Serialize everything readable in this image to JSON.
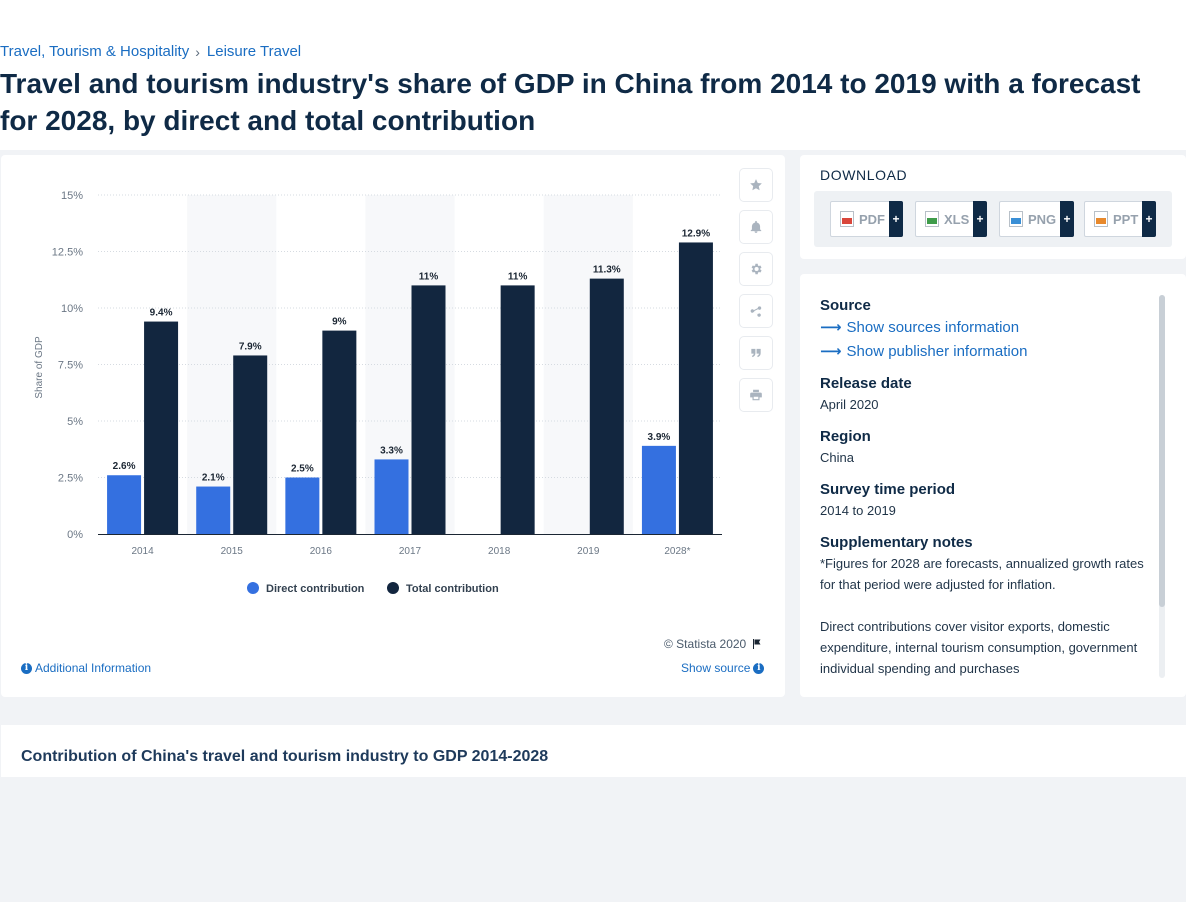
{
  "breadcrumb": {
    "items": [
      "Travel, Tourism & Hospitality",
      "Leisure Travel"
    ],
    "separator": "›"
  },
  "title": "Travel and tourism industry's share of GDP in China from 2014 to 2019 with a forecast for 2028, by direct and total contribution",
  "chart_data": {
    "type": "bar",
    "categories": [
      "2014",
      "2015",
      "2016",
      "2017",
      "2018",
      "2019",
      "2028*"
    ],
    "series": [
      {
        "name": "Direct contribution",
        "color": "#3470e0",
        "values": [
          2.6,
          2.1,
          2.5,
          3.3,
          null,
          null,
          3.9
        ],
        "labels": [
          "2.6%",
          "2.1%",
          "2.5%",
          "3.3%",
          "",
          "",
          "3.9%"
        ]
      },
      {
        "name": "Total contribution",
        "color": "#12263f",
        "values": [
          9.4,
          7.9,
          9.0,
          11.0,
          11.0,
          11.3,
          12.9
        ],
        "labels": [
          "9.4%",
          "7.9%",
          "9%",
          "11%",
          "11%",
          "11.3%",
          "12.9%"
        ]
      }
    ],
    "ylabel": "Share of GDP",
    "xlabel": "",
    "ylim": [
      0,
      15
    ],
    "yticks": [
      0,
      2.5,
      5,
      7.5,
      10,
      12.5,
      15
    ],
    "ytick_labels": [
      "0%",
      "2.5%",
      "5%",
      "7.5%",
      "10%",
      "12.5%",
      "15%"
    ],
    "grid": true,
    "legend_position": "bottom"
  },
  "chart_footer": {
    "credit": "© Statista 2020",
    "additional_info": "Additional Information",
    "show_source": "Show source"
  },
  "tools": [
    "star-icon",
    "bell-icon",
    "gear-icon",
    "share-icon",
    "quote-icon",
    "print-icon"
  ],
  "download": {
    "title": "DOWNLOAD",
    "buttons": [
      {
        "label": "PDF",
        "color": "#d9463b"
      },
      {
        "label": "XLS",
        "color": "#3f9c4a"
      },
      {
        "label": "PNG",
        "color": "#3a8fd6"
      },
      {
        "label": "PPT",
        "color": "#e8892c"
      }
    ],
    "plus": "+"
  },
  "meta": {
    "source_heading": "Source",
    "source_link": "Show sources information",
    "publisher_link": "Show publisher information",
    "release_heading": "Release date",
    "release_value": "April 2020",
    "region_heading": "Region",
    "region_value": "China",
    "period_heading": "Survey time period",
    "period_value": "2014 to 2019",
    "notes_heading": "Supplementary notes",
    "notes_1": "*Figures for 2028 are forecasts, annualized growth rates for that period were adjusted for inflation.",
    "notes_2": "Direct contributions cover visitor exports, domestic expenditure, internal tourism consumption, government individual spending and purchases"
  },
  "related": {
    "title": "Contribution of China's travel and tourism industry to GDP 2014-2028"
  }
}
